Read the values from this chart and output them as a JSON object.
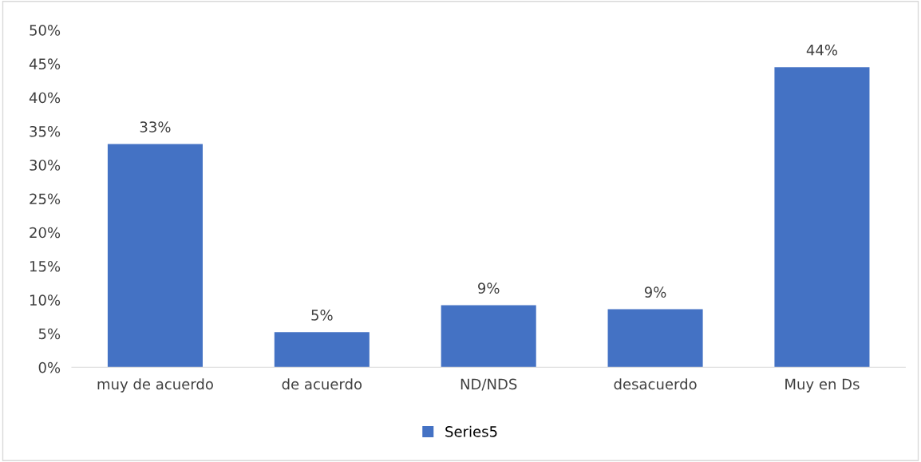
{
  "chart_data": {
    "type": "bar",
    "categories": [
      "muy de acuerdo",
      "de acuerdo",
      "ND/NDS",
      "desacuerdo",
      "Muy en Ds"
    ],
    "series": [
      {
        "name": "Series5",
        "color": "#4472c4",
        "values": [
          33.1,
          5.2,
          9.2,
          8.6,
          44.5
        ],
        "value_labels": [
          "33%",
          "5%",
          "9%",
          "9%",
          "44%"
        ]
      }
    ],
    "ylim": [
      0,
      50
    ],
    "yticks": [
      {
        "value": 0,
        "label": "0%"
      },
      {
        "value": 5,
        "label": "5%"
      },
      {
        "value": 10,
        "label": "10%"
      },
      {
        "value": 15,
        "label": "15%"
      },
      {
        "value": 20,
        "label": "20%"
      },
      {
        "value": 25,
        "label": "25%"
      },
      {
        "value": 30,
        "label": "30%"
      },
      {
        "value": 35,
        "label": "35%"
      },
      {
        "value": 40,
        "label": "40%"
      },
      {
        "value": 45,
        "label": "45%"
      },
      {
        "value": 50,
        "label": "50%"
      }
    ],
    "grid": false,
    "legend": "bottom"
  }
}
